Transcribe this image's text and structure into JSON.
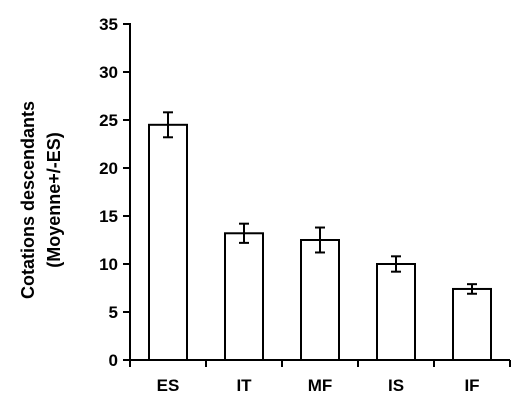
{
  "chart_data": {
    "type": "bar",
    "title": "",
    "xlabel": "",
    "ylabel_line1": "Cotations descendants",
    "ylabel_line2": "(Moyenne+/-ES)",
    "categories": [
      "ES",
      "IT",
      "MF",
      "IS",
      "IF"
    ],
    "values": [
      24.5,
      13.2,
      12.5,
      10.0,
      7.4
    ],
    "errors": [
      1.3,
      1.0,
      1.3,
      0.8,
      0.5
    ],
    "ylim": [
      0,
      35
    ],
    "yticks": [
      0,
      5,
      10,
      15,
      20,
      25,
      30,
      35
    ],
    "grid": false,
    "legend": "none",
    "bar_fill": "#ffffff",
    "bar_stroke": "#000000"
  }
}
